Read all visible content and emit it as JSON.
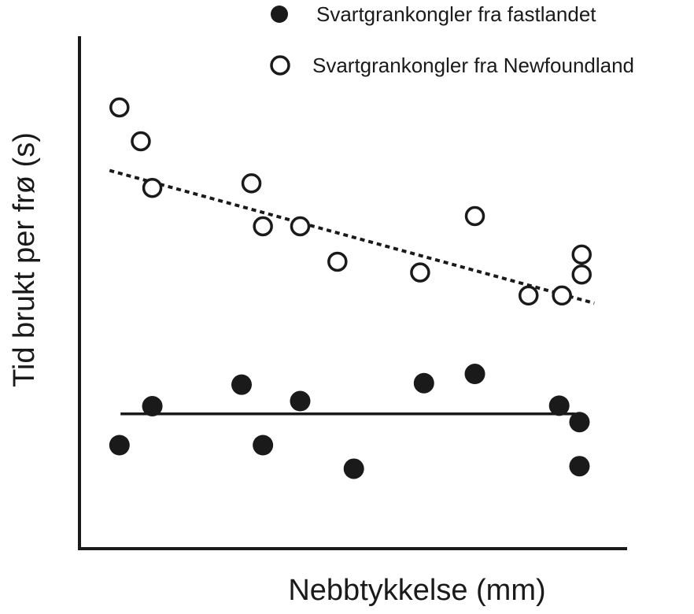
{
  "chart_data": {
    "type": "scatter",
    "title": "",
    "xlabel": "Nebbtykkelse (mm)",
    "ylabel": "Tid brukt per frø (s)",
    "xlim": [
      0,
      100
    ],
    "ylim": [
      0,
      100
    ],
    "x_ticks_shown": false,
    "y_ticks_shown": false,
    "grid": false,
    "legend_position": "top-right",
    "series": [
      {
        "name": "Svartgrankongler fra fastlandet",
        "marker": "filled-circle",
        "color": "#1a1a1a",
        "trendline": {
          "style": "solid",
          "x": [
            7.5,
            90.5
          ],
          "y": [
            26.3,
            26.3
          ]
        },
        "points": [
          {
            "x": 7.3,
            "y": 20.2
          },
          {
            "x": 13.3,
            "y": 27.8
          },
          {
            "x": 29.6,
            "y": 32.0
          },
          {
            "x": 33.5,
            "y": 20.2
          },
          {
            "x": 40.3,
            "y": 28.8
          },
          {
            "x": 50.1,
            "y": 15.6
          },
          {
            "x": 62.9,
            "y": 32.3
          },
          {
            "x": 72.2,
            "y": 34.1
          },
          {
            "x": 87.6,
            "y": 27.9
          },
          {
            "x": 91.3,
            "y": 24.7
          },
          {
            "x": 91.3,
            "y": 16.1
          }
        ]
      },
      {
        "name": "Svartgrankongler fra Newfoundland",
        "marker": "open-circle",
        "color": "#1a1a1a",
        "trendline": {
          "style": "dotted",
          "x": [
            5.5,
            94.0
          ],
          "y": [
            73.8,
            47.9
          ]
        },
        "points": [
          {
            "x": 7.3,
            "y": 86.1
          },
          {
            "x": 11.2,
            "y": 79.5
          },
          {
            "x": 13.3,
            "y": 70.4
          },
          {
            "x": 31.4,
            "y": 71.3
          },
          {
            "x": 33.5,
            "y": 62.9
          },
          {
            "x": 40.3,
            "y": 62.9
          },
          {
            "x": 47.1,
            "y": 56.0
          },
          {
            "x": 62.2,
            "y": 53.9
          },
          {
            "x": 72.2,
            "y": 64.9
          },
          {
            "x": 82.0,
            "y": 49.4
          },
          {
            "x": 88.1,
            "y": 49.4
          },
          {
            "x": 91.7,
            "y": 57.4
          },
          {
            "x": 91.7,
            "y": 53.5
          }
        ]
      }
    ]
  }
}
